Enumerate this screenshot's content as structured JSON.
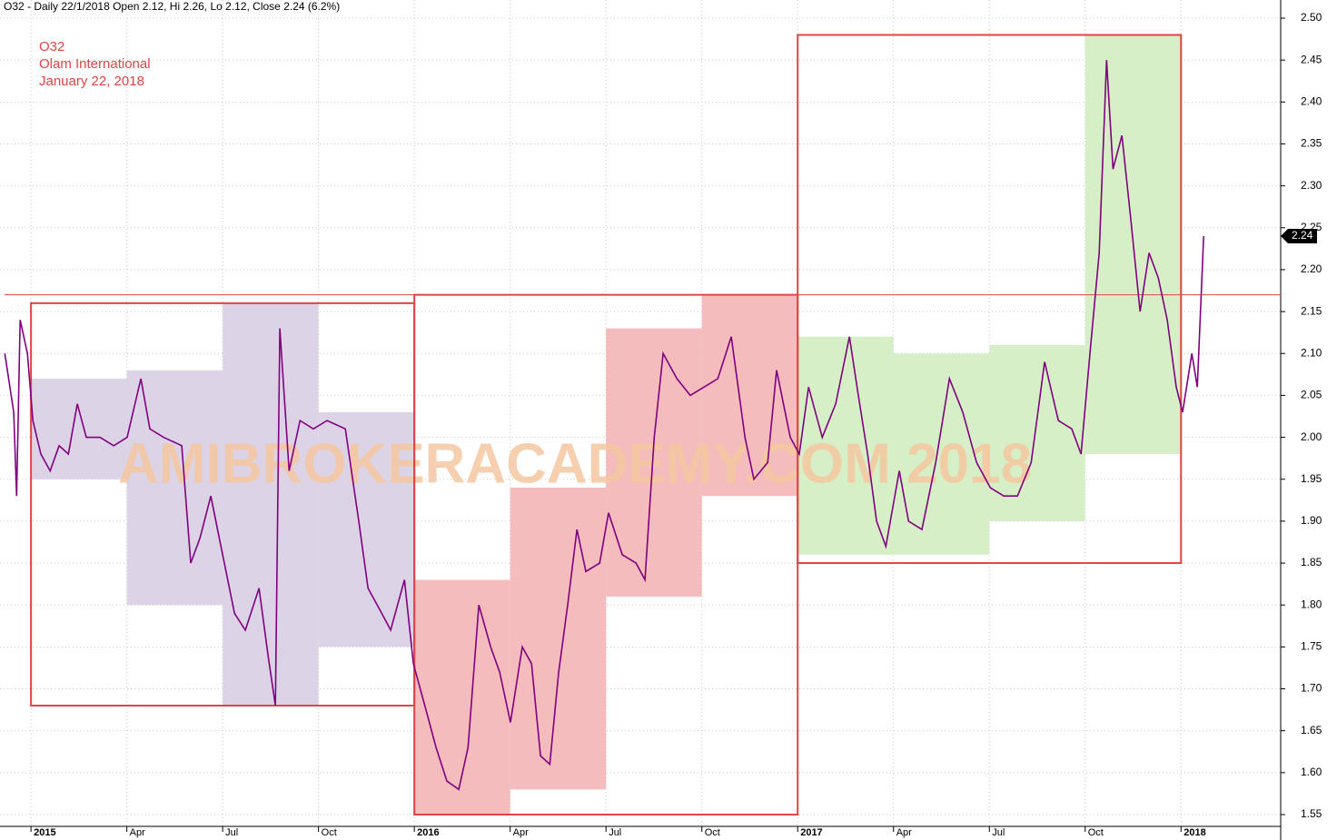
{
  "chart_data": {
    "type": "line",
    "header": "O32 - Daily 22/1/2018 Open 2.12, Hi 2.26, Lo 2.12, Close 2.24 (6.2%)",
    "annotations": [
      "O32",
      "Olam International",
      "January 22, 2018"
    ],
    "watermark": "AMIBROKERACADEMY.COM  2018",
    "x": [
      -0.82,
      -0.54,
      -0.45,
      -0.34,
      -0.11,
      0.06,
      0.31,
      0.6,
      0.88,
      1.17,
      1.45,
      1.73,
      2.16,
      2.59,
      3.01,
      3.44,
      3.72,
      4.15,
      4.72,
      5.0,
      5.29,
      5.63,
      6.0,
      6.37,
      6.71,
      7.14,
      7.42,
      7.65,
      7.79,
      8.08,
      8.42,
      8.84,
      9.27,
      9.84,
      10.26,
      10.55,
      10.98,
      11.26,
      11.69,
      11.97,
      12.4,
      12.68,
      13.02,
      13.39,
      13.68,
      14.02,
      14.39,
      14.67,
      15.01,
      15.38,
      15.67,
      15.95,
      16.24,
      16.52,
      16.8,
      17.09,
      17.37,
      17.8,
      18.08,
      18.51,
      18.94,
      19.22,
      19.51,
      19.79,
      20.22,
      20.64,
      21.07,
      21.5,
      21.92,
      22.35,
      22.63,
      23.06,
      23.34,
      23.77,
      24.05,
      24.34,
      24.77,
      25.19,
      25.62,
      25.9,
      26.19,
      26.47,
      26.76,
      27.18,
      27.47,
      27.89,
      28.32,
      28.75,
      29.17,
      29.6,
      30.03,
      30.45,
      30.88,
      31.31,
      31.73,
      32.16,
      32.58,
      32.87,
      33.15,
      33.44,
      33.67,
      33.87,
      34.15,
      34.43,
      34.72,
      35.0,
      35.29,
      35.57,
      35.85,
      36.05,
      36.34,
      36.51,
      36.71
    ],
    "series": [
      {
        "name": "O32",
        "color": "#800080",
        "values": [
          2.1,
          2.03,
          1.93,
          2.14,
          2.1,
          2.02,
          1.98,
          1.96,
          1.99,
          1.98,
          2.04,
          2.0,
          2.0,
          1.99,
          2.0,
          2.07,
          2.01,
          2.0,
          1.99,
          1.85,
          1.88,
          1.93,
          1.86,
          1.79,
          1.77,
          1.82,
          1.74,
          1.68,
          2.13,
          1.96,
          2.02,
          2.01,
          2.02,
          2.01,
          1.9,
          1.82,
          1.79,
          1.77,
          1.83,
          1.73,
          1.67,
          1.63,
          1.59,
          1.58,
          1.63,
          1.8,
          1.75,
          1.72,
          1.66,
          1.75,
          1.73,
          1.62,
          1.61,
          1.72,
          1.8,
          1.89,
          1.84,
          1.85,
          1.91,
          1.86,
          1.85,
          1.83,
          2.0,
          2.1,
          2.07,
          2.05,
          2.06,
          2.07,
          2.12,
          2.0,
          1.95,
          1.97,
          2.08,
          2.0,
          1.98,
          2.06,
          2.0,
          2.04,
          2.12,
          2.05,
          1.98,
          1.9,
          1.87,
          1.96,
          1.9,
          1.89,
          1.97,
          2.07,
          2.03,
          1.97,
          1.94,
          1.93,
          1.93,
          1.97,
          2.09,
          2.02,
          2.01,
          1.98,
          2.1,
          2.22,
          2.45,
          2.32,
          2.36,
          2.26,
          2.15,
          2.22,
          2.19,
          2.14,
          2.06,
          2.03,
          2.1,
          2.06,
          2.24
        ]
      }
    ],
    "zones": [
      {
        "x": [
          0,
          3
        ],
        "y": [
          1.95,
          2.07
        ],
        "color": "#dcd3e6"
      },
      {
        "x": [
          3,
          6
        ],
        "y": [
          1.8,
          2.08
        ],
        "color": "#dcd3e6"
      },
      {
        "x": [
          6,
          9
        ],
        "y": [
          1.68,
          2.16
        ],
        "color": "#dcd3e6"
      },
      {
        "x": [
          9,
          12
        ],
        "y": [
          1.75,
          2.03
        ],
        "color": "#dcd3e6"
      },
      {
        "x": [
          12,
          15
        ],
        "y": [
          1.55,
          1.83
        ],
        "color": "#f4bcbc"
      },
      {
        "x": [
          15,
          18
        ],
        "y": [
          1.58,
          1.94
        ],
        "color": "#f4bcbc"
      },
      {
        "x": [
          18,
          21
        ],
        "y": [
          1.81,
          2.13
        ],
        "color": "#f4bcbc"
      },
      {
        "x": [
          21,
          24
        ],
        "y": [
          1.93,
          2.17
        ],
        "color": "#f4bcbc"
      },
      {
        "x": [
          24,
          27
        ],
        "y": [
          1.86,
          2.12
        ],
        "color": "#d6efc6"
      },
      {
        "x": [
          27,
          30
        ],
        "y": [
          1.86,
          2.1
        ],
        "color": "#d6efc6"
      },
      {
        "x": [
          30,
          33
        ],
        "y": [
          1.9,
          2.11
        ],
        "color": "#d6efc6"
      },
      {
        "x": [
          33,
          36
        ],
        "y": [
          1.98,
          2.48
        ],
        "color": "#d6efc6"
      }
    ],
    "boxes": [
      {
        "x": [
          0,
          12
        ],
        "y": [
          1.68,
          2.16
        ],
        "color": "#e04444"
      },
      {
        "x": [
          12,
          24
        ],
        "y": [
          1.55,
          2.17
        ],
        "color": "#e04444"
      },
      {
        "x": [
          24,
          36
        ],
        "y": [
          1.85,
          2.48
        ],
        "color": "#e04444"
      }
    ],
    "hline": 2.17,
    "hline_color": "#e04444",
    "xlim": [
      -0.97,
      39.12
    ],
    "ylim": [
      1.53,
      2.52
    ],
    "xticks": [
      {
        "value": 0,
        "label": "2015"
      },
      {
        "value": 3,
        "label": "Apr"
      },
      {
        "value": 6,
        "label": "Jul"
      },
      {
        "value": 9,
        "label": "Oct"
      },
      {
        "value": 12,
        "label": "2016"
      },
      {
        "value": 15,
        "label": "Apr"
      },
      {
        "value": 18,
        "label": "Jul"
      },
      {
        "value": 21,
        "label": "Oct"
      },
      {
        "value": 24,
        "label": "2017"
      },
      {
        "value": 27,
        "label": "Apr"
      },
      {
        "value": 30,
        "label": "Jul"
      },
      {
        "value": 33,
        "label": "Oct"
      },
      {
        "value": 36,
        "label": "2018"
      }
    ],
    "yticks": [
      1.55,
      {
        "value": 1.6,
        "label": "1.60"
      },
      1.65,
      {
        "value": 1.7,
        "label": "1.70"
      },
      1.75,
      {
        "value": 1.8,
        "label": "1.80"
      },
      1.85,
      {
        "value": 1.9,
        "label": "1.90"
      },
      1.95,
      {
        "value": 2.0,
        "label": "2.00"
      },
      2.05,
      {
        "value": 2.1,
        "label": "2.10"
      },
      2.15,
      {
        "value": 2.2,
        "label": "2.20"
      },
      2.25,
      {
        "value": 2.3,
        "label": "2.30"
      },
      2.35,
      {
        "value": 2.4,
        "label": "2.40"
      },
      2.45,
      {
        "value": 2.5,
        "label": "2.50"
      }
    ],
    "grid": true
  }
}
